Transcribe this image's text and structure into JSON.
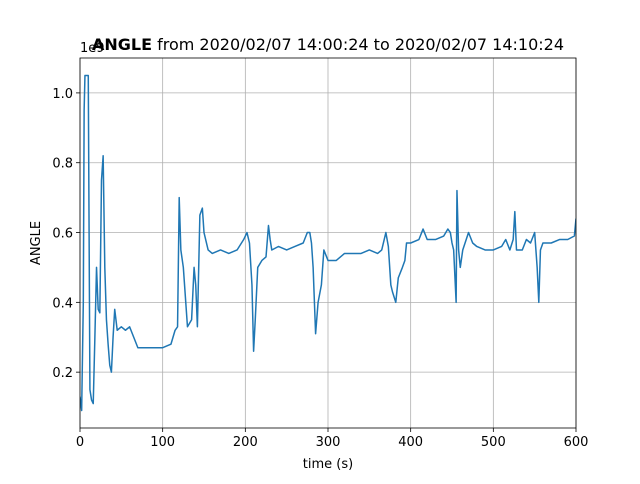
{
  "chart_data": {
    "type": "line",
    "title_bold": "ANGLE",
    "title": "from 2020/02/07 14:00:24 to 2020/02/07 14:10:24",
    "x_label": "time (s)",
    "y_label": "ANGLE",
    "y_offset_text": "1e9",
    "xlim": [
      0,
      600
    ],
    "ylim": [
      0.04,
      1.1
    ],
    "xticks": [
      0,
      100,
      200,
      300,
      400,
      500,
      600
    ],
    "yticks": [
      0.2,
      0.4,
      0.6,
      0.8,
      1.0
    ],
    "grid": true,
    "x": [
      0,
      2,
      4,
      5,
      6,
      10,
      11,
      12,
      14,
      16,
      18,
      20,
      22,
      24,
      26,
      28,
      30,
      32,
      34,
      36,
      38,
      40,
      42,
      45,
      50,
      55,
      60,
      65,
      70,
      80,
      90,
      100,
      110,
      115,
      118,
      120,
      122,
      125,
      130,
      135,
      138,
      140,
      142,
      145,
      148,
      150,
      155,
      160,
      170,
      180,
      190,
      198,
      202,
      205,
      208,
      210,
      212,
      215,
      220,
      225,
      228,
      230,
      232,
      240,
      250,
      260,
      270,
      275,
      278,
      280,
      282,
      285,
      288,
      292,
      295,
      300,
      310,
      320,
      330,
      340,
      350,
      360,
      365,
      370,
      373,
      376,
      378,
      382,
      385,
      390,
      393,
      395,
      400,
      410,
      415,
      420,
      430,
      440,
      445,
      448,
      450,
      452,
      455,
      456,
      458,
      460,
      463,
      470,
      475,
      480,
      490,
      500,
      510,
      515,
      520,
      524,
      526,
      528,
      535,
      540,
      545,
      550,
      553,
      555,
      557,
      560,
      570,
      580,
      590,
      598,
      600
    ],
    "series": [
      {
        "name": "ANGLE",
        "color": "#1f77b4",
        "values": [
          0.13,
          0.09,
          0.4,
          0.95,
          1.05,
          1.05,
          0.6,
          0.15,
          0.12,
          0.11,
          0.3,
          0.5,
          0.38,
          0.37,
          0.75,
          0.82,
          0.5,
          0.35,
          0.28,
          0.22,
          0.2,
          0.3,
          0.38,
          0.32,
          0.33,
          0.32,
          0.33,
          0.3,
          0.27,
          0.27,
          0.27,
          0.27,
          0.28,
          0.32,
          0.33,
          0.7,
          0.55,
          0.5,
          0.33,
          0.35,
          0.5,
          0.45,
          0.33,
          0.65,
          0.67,
          0.6,
          0.55,
          0.54,
          0.55,
          0.54,
          0.55,
          0.58,
          0.6,
          0.57,
          0.45,
          0.26,
          0.35,
          0.5,
          0.52,
          0.53,
          0.62,
          0.58,
          0.55,
          0.56,
          0.55,
          0.56,
          0.57,
          0.6,
          0.6,
          0.57,
          0.5,
          0.31,
          0.4,
          0.45,
          0.55,
          0.52,
          0.52,
          0.54,
          0.54,
          0.54,
          0.55,
          0.54,
          0.55,
          0.6,
          0.56,
          0.45,
          0.43,
          0.4,
          0.47,
          0.5,
          0.52,
          0.57,
          0.57,
          0.58,
          0.61,
          0.58,
          0.58,
          0.59,
          0.61,
          0.6,
          0.57,
          0.55,
          0.4,
          0.72,
          0.55,
          0.5,
          0.55,
          0.6,
          0.57,
          0.56,
          0.55,
          0.55,
          0.56,
          0.58,
          0.55,
          0.58,
          0.66,
          0.55,
          0.55,
          0.58,
          0.57,
          0.6,
          0.5,
          0.4,
          0.55,
          0.57,
          0.57,
          0.58,
          0.58,
          0.59,
          0.64
        ]
      }
    ]
  }
}
